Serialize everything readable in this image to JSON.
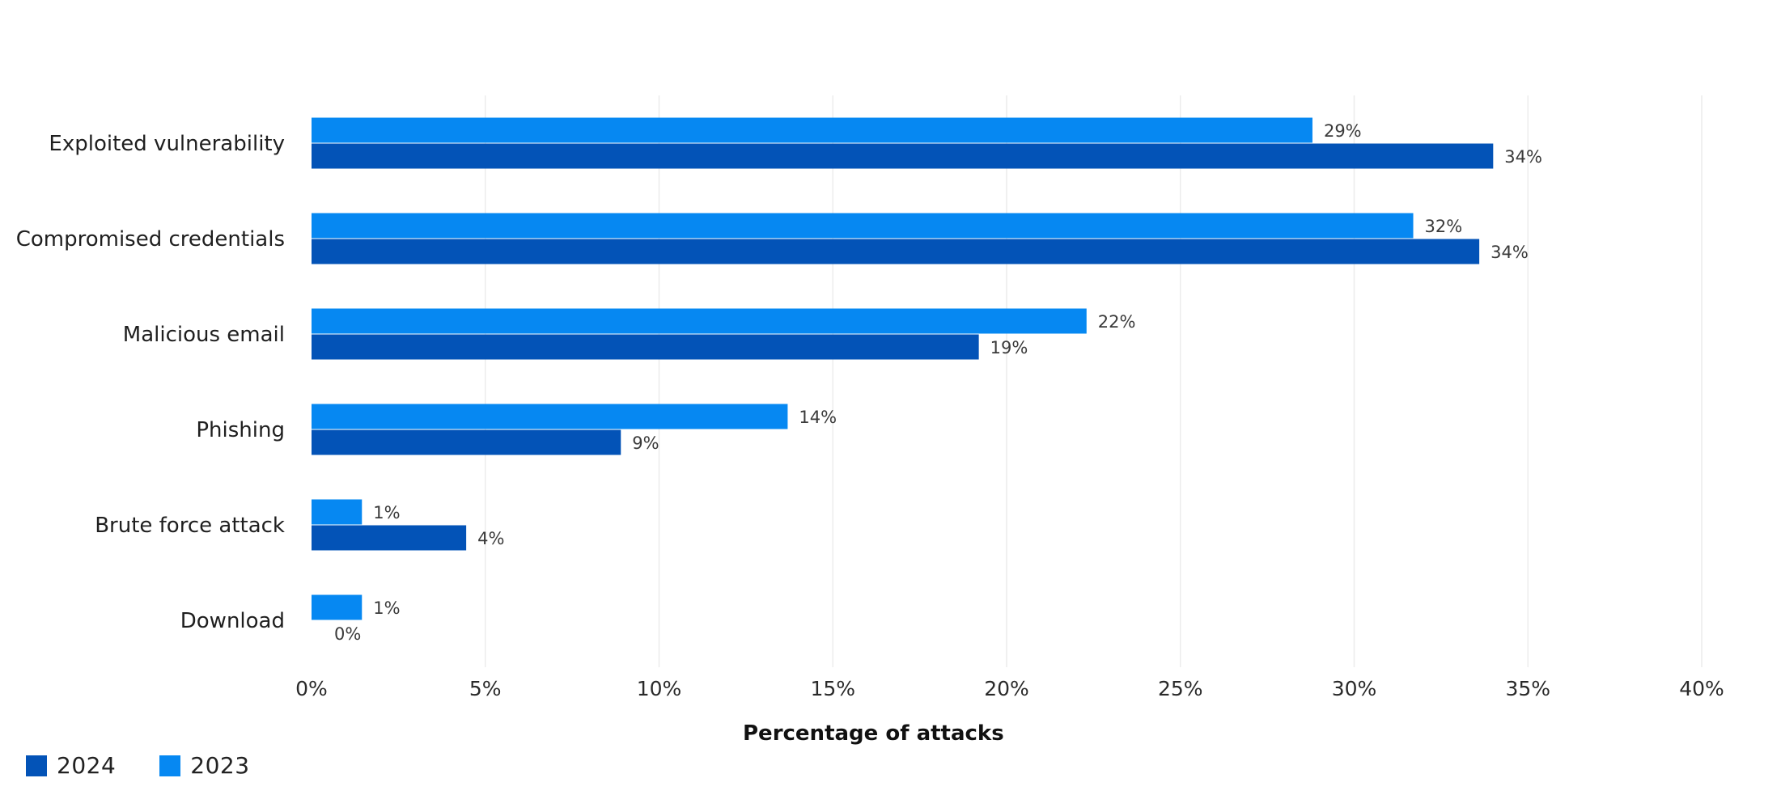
{
  "chart_data": {
    "type": "bar",
    "orientation": "horizontal",
    "categories": [
      "Exploited vulnerability",
      "Compromised credentials",
      "Malicious email",
      "Phishing",
      "Brute force attack",
      "Download"
    ],
    "series": [
      {
        "name": "2023",
        "color": "#0688f2",
        "values": [
          28.8,
          31.7,
          22.3,
          13.7,
          1.45,
          1.45
        ],
        "labels": [
          "29%",
          "32%",
          "22%",
          "14%",
          "1%",
          "1%"
        ]
      },
      {
        "name": "2024",
        "color": "#0353b7",
        "values": [
          34.0,
          33.6,
          19.2,
          8.9,
          4.45,
          0
        ],
        "labels": [
          "34%",
          "34%",
          "19%",
          "9%",
          "4%",
          "0%"
        ]
      }
    ],
    "xlabel": "Percentage of attacks",
    "xlim": [
      0,
      40
    ],
    "x_ticks": [
      0,
      5,
      10,
      15,
      20,
      25,
      30,
      35,
      40
    ],
    "x_tick_labels": [
      "0%",
      "5%",
      "10%",
      "15%",
      "20%",
      "25%",
      "30%",
      "35%",
      "40%"
    ],
    "grid": "vertical",
    "legend_position": "bottom-left",
    "legend": [
      {
        "name": "2024",
        "color": "#0353b7"
      },
      {
        "name": "2023",
        "color": "#0688f2"
      }
    ]
  }
}
